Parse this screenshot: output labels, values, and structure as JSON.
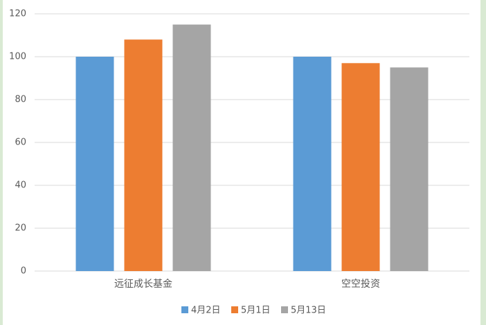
{
  "chart_data": {
    "type": "bar",
    "categories": [
      "远征成长基金",
      "空空投资"
    ],
    "series": [
      {
        "name": "4月2日",
        "color": "#5b9bd5",
        "values": [
          100,
          100
        ]
      },
      {
        "name": "5月1日",
        "color": "#ed7d31",
        "values": [
          108,
          97
        ]
      },
      {
        "name": "5月13日",
        "color": "#a5a5a5",
        "values": [
          115,
          95
        ]
      }
    ],
    "ylim": [
      0,
      120
    ],
    "yticks": [
      0,
      20,
      40,
      60,
      80,
      100,
      120
    ],
    "grid": true,
    "legend": "bottom"
  }
}
